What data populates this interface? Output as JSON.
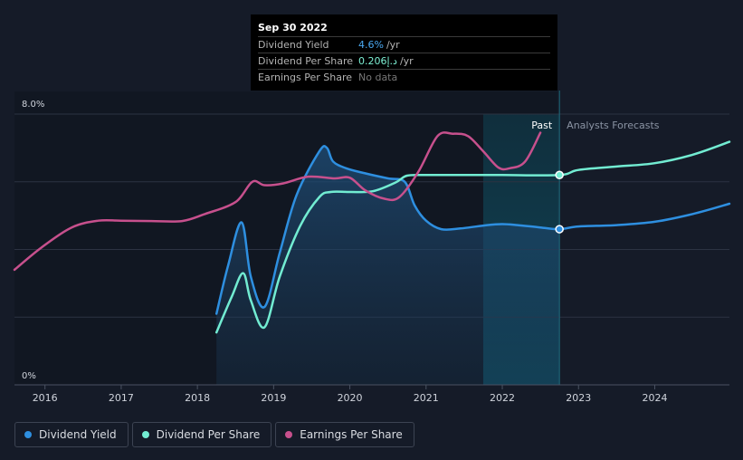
{
  "chart_data": {
    "type": "line",
    "y_axis": {
      "labels": [
        "8.0%",
        "0%"
      ],
      "ylim": [
        0,
        8
      ]
    },
    "x_axis": {
      "ticks": [
        "2016",
        "2017",
        "2018",
        "2019",
        "2020",
        "2021",
        "2022",
        "2023",
        "2024"
      ],
      "xlim": [
        2015.6,
        2024.98
      ]
    },
    "regions": {
      "past_label": "Past",
      "forecast_label": "Analysts Forecasts",
      "forecast_band": [
        2021.75,
        2022.75
      ]
    },
    "marker_x": 2022.75,
    "series": [
      {
        "name": "Dividend Yield",
        "color": "#2e8fe0",
        "fill": true,
        "points": [
          [
            2018.25,
            2.1
          ],
          [
            2018.4,
            3.5
          ],
          [
            2018.58,
            4.8
          ],
          [
            2018.7,
            3.2
          ],
          [
            2018.88,
            2.3
          ],
          [
            2019.08,
            3.9
          ],
          [
            2019.3,
            5.6
          ],
          [
            2019.6,
            6.9
          ],
          [
            2019.7,
            7.0
          ],
          [
            2019.78,
            6.6
          ],
          [
            2019.95,
            6.4
          ],
          [
            2020.2,
            6.25
          ],
          [
            2020.5,
            6.1
          ],
          [
            2020.72,
            6.0
          ],
          [
            2020.85,
            5.3
          ],
          [
            2021.0,
            4.85
          ],
          [
            2021.2,
            4.6
          ],
          [
            2021.45,
            4.62
          ],
          [
            2021.8,
            4.72
          ],
          [
            2022.0,
            4.75
          ],
          [
            2022.2,
            4.72
          ],
          [
            2022.5,
            4.65
          ],
          [
            2022.75,
            4.6
          ],
          [
            2023.0,
            4.68
          ],
          [
            2023.5,
            4.72
          ],
          [
            2024.0,
            4.82
          ],
          [
            2024.5,
            5.05
          ],
          [
            2024.98,
            5.35
          ]
        ]
      },
      {
        "name": "Dividend Per Share",
        "color": "#72ecd2",
        "fill": false,
        "points": [
          [
            2018.25,
            1.55
          ],
          [
            2018.45,
            2.6
          ],
          [
            2018.6,
            3.3
          ],
          [
            2018.7,
            2.5
          ],
          [
            2018.88,
            1.7
          ],
          [
            2019.08,
            3.2
          ],
          [
            2019.35,
            4.7
          ],
          [
            2019.6,
            5.55
          ],
          [
            2019.75,
            5.7
          ],
          [
            2020.0,
            5.7
          ],
          [
            2020.3,
            5.72
          ],
          [
            2020.6,
            5.98
          ],
          [
            2020.75,
            6.18
          ],
          [
            2021.0,
            6.2
          ],
          [
            2021.5,
            6.2
          ],
          [
            2022.0,
            6.2
          ],
          [
            2022.75,
            6.2
          ],
          [
            2023.0,
            6.35
          ],
          [
            2023.5,
            6.45
          ],
          [
            2024.0,
            6.55
          ],
          [
            2024.5,
            6.8
          ],
          [
            2024.98,
            7.18
          ]
        ]
      },
      {
        "name": "Earnings Per Share",
        "color": "#c7508d",
        "fill": false,
        "points": [
          [
            2015.6,
            3.4
          ],
          [
            2015.95,
            4.05
          ],
          [
            2016.35,
            4.65
          ],
          [
            2016.7,
            4.85
          ],
          [
            2017.0,
            4.85
          ],
          [
            2017.4,
            4.84
          ],
          [
            2017.8,
            4.84
          ],
          [
            2018.1,
            5.05
          ],
          [
            2018.5,
            5.4
          ],
          [
            2018.72,
            6.0
          ],
          [
            2018.88,
            5.9
          ],
          [
            2019.12,
            5.95
          ],
          [
            2019.45,
            6.15
          ],
          [
            2019.8,
            6.1
          ],
          [
            2020.0,
            6.12
          ],
          [
            2020.2,
            5.75
          ],
          [
            2020.45,
            5.5
          ],
          [
            2020.65,
            5.55
          ],
          [
            2020.9,
            6.3
          ],
          [
            2021.15,
            7.35
          ],
          [
            2021.35,
            7.42
          ],
          [
            2021.55,
            7.35
          ],
          [
            2021.75,
            6.9
          ],
          [
            2021.95,
            6.42
          ],
          [
            2022.1,
            6.4
          ],
          [
            2022.3,
            6.6
          ],
          [
            2022.5,
            7.45
          ]
        ]
      }
    ],
    "legend": [
      "Dividend Yield",
      "Dividend Per Share",
      "Earnings Per Share"
    ]
  },
  "tooltip": {
    "date": "Sep 30 2022",
    "rows": [
      {
        "label": "Dividend Yield",
        "value": "4.6%",
        "suffix": "/yr"
      },
      {
        "label": "Dividend Per Share",
        "value": "0.206د.إ",
        "suffix": "/yr"
      },
      {
        "label": "Earnings Per Share",
        "value": "No data",
        "suffix": ""
      }
    ]
  },
  "legend": {
    "items": [
      {
        "label": "Dividend Yield",
        "color": "#2e8fe0"
      },
      {
        "label": "Dividend Per Share",
        "color": "#72ecd2"
      },
      {
        "label": "Earnings Per Share",
        "color": "#c7508d"
      }
    ]
  }
}
